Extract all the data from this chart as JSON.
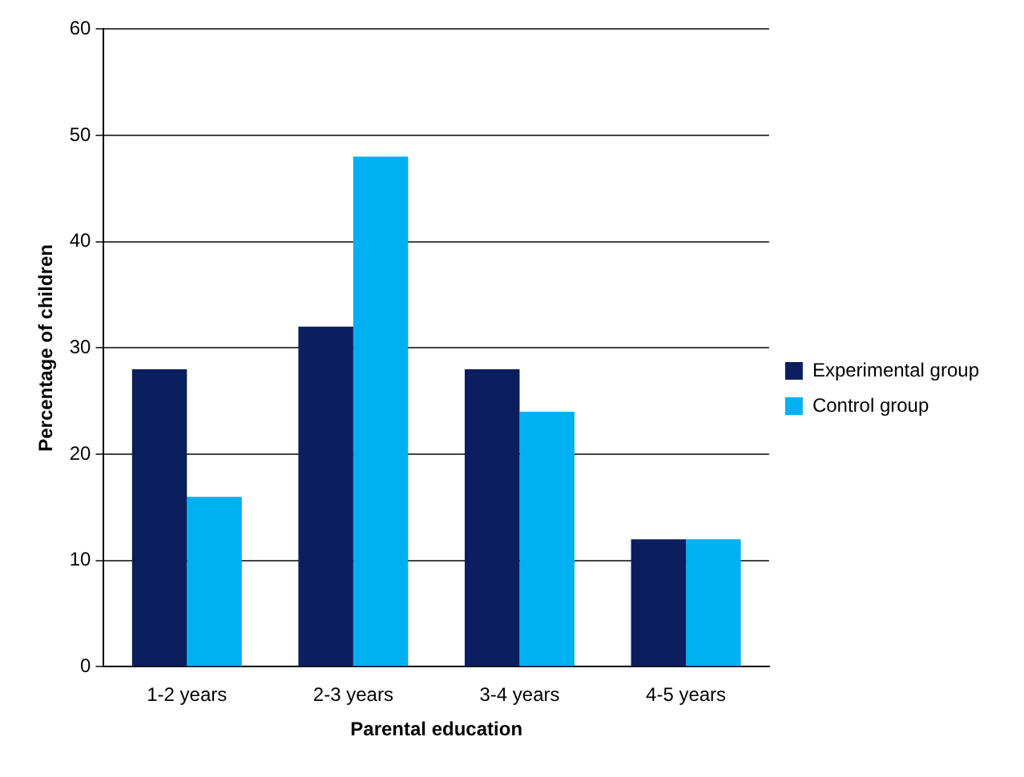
{
  "chart_data": {
    "type": "bar",
    "xlabel": "Parental education",
    "ylabel": "Percentage of children",
    "categories": [
      "1-2 years",
      "2-3 years",
      "3-4 years",
      "4-5 years"
    ],
    "series": [
      {
        "name": "Experimental group",
        "color": "#0b1f5e",
        "values": [
          28,
          32,
          28,
          12
        ]
      },
      {
        "name": "Control group",
        "color": "#00b0f0",
        "values": [
          16,
          48,
          24,
          12
        ]
      }
    ],
    "ylim": [
      0,
      60
    ],
    "yticks": [
      0,
      10,
      20,
      30,
      40,
      50,
      60
    ],
    "grid": "y",
    "legend": "right"
  }
}
